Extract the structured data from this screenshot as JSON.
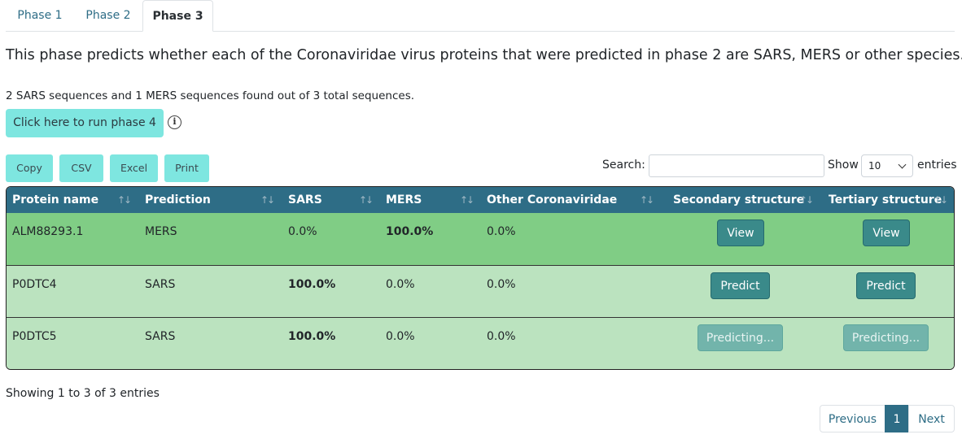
{
  "tabs": [
    "Phase 1",
    "Phase 2",
    "Phase 3"
  ],
  "description": "This phase predicts whether each of the Coronaviridae virus proteins that were predicted in phase 2 are SARS, MERS or other species.",
  "found_text": "2 SARS sequences and 1 MERS sequences found out of 3 total sequences.",
  "run_button": "Click here to run phase 4",
  "info_icon_glyph": "i",
  "export_buttons": [
    "Copy",
    "CSV",
    "Excel",
    "Print"
  ],
  "search": {
    "label": "Search:",
    "value": ""
  },
  "length": {
    "show": "Show",
    "value": "10",
    "entries": "entries"
  },
  "table": {
    "headers": [
      "Protein name",
      "Prediction",
      "SARS",
      "MERS",
      "Other Coronaviridae",
      "Secondary structure",
      "Tertiary structure"
    ],
    "sort_glyph": "↑↓",
    "rows": [
      {
        "name": "ALM88293.1",
        "prediction": "MERS",
        "sars": "0.0%",
        "mers": "100.0%",
        "other": "0.0%",
        "secondary": "View",
        "tertiary": "View"
      },
      {
        "name": "P0DTC4",
        "prediction": "SARS",
        "sars": "100.0%",
        "mers": "0.0%",
        "other": "0.0%",
        "secondary": "Predict",
        "tertiary": "Predict"
      },
      {
        "name": "P0DTC5",
        "prediction": "SARS",
        "sars": "100.0%",
        "mers": "0.0%",
        "other": "0.0%",
        "secondary": "Predicting...",
        "tertiary": "Predicting..."
      }
    ]
  },
  "table_info": "Showing 1 to 3 of 3 entries",
  "pagination": {
    "previous": "Previous",
    "current": "1",
    "next": "Next"
  },
  "colors": {
    "header": "#2e6d86",
    "highlight_row": "#80cd85",
    "row": "#bbe3bf",
    "accent_button": "#7ee6e0"
  }
}
